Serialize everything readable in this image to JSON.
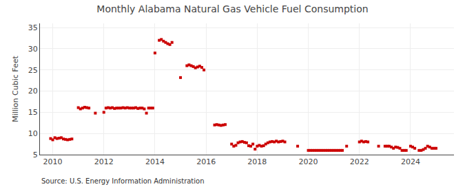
{
  "chart_data": {
    "type": "scatter",
    "title": "Monthly Alabama Natural Gas Vehicle Fuel Consumption",
    "ylabel": "Million Cubic Feet",
    "source": "Source: U.S. Energy Information Administration",
    "color": "#cc0000",
    "marker": "square",
    "grid": true,
    "xlim": [
      2009.5,
      2025.7
    ],
    "ylim": [
      5,
      36
    ],
    "xticks": [
      2010,
      2012,
      2014,
      2016,
      2018,
      2020,
      2022,
      2024
    ],
    "yticks": [
      5,
      10,
      15,
      20,
      25,
      30,
      35
    ],
    "x": [
      2009.917,
      2010.0,
      2010.083,
      2010.167,
      2010.25,
      2010.333,
      2010.417,
      2010.5,
      2010.583,
      2010.667,
      2010.75,
      2011.0,
      2011.083,
      2011.167,
      2011.25,
      2011.333,
      2011.417,
      2011.667,
      2012.0,
      2012.083,
      2012.167,
      2012.25,
      2012.333,
      2012.417,
      2012.5,
      2012.583,
      2012.667,
      2012.75,
      2012.833,
      2012.917,
      2013.0,
      2013.083,
      2013.167,
      2013.25,
      2013.333,
      2013.417,
      2013.5,
      2013.583,
      2013.667,
      2013.75,
      2013.833,
      2013.917,
      2014.0,
      2014.167,
      2014.25,
      2014.333,
      2014.417,
      2014.5,
      2014.583,
      2014.667,
      2015.0,
      2015.25,
      2015.333,
      2015.417,
      2015.5,
      2015.583,
      2015.667,
      2015.75,
      2015.833,
      2015.917,
      2016.333,
      2016.417,
      2016.5,
      2016.583,
      2016.667,
      2016.75,
      2017.0,
      2017.083,
      2017.167,
      2017.25,
      2017.333,
      2017.417,
      2017.5,
      2017.583,
      2017.667,
      2017.75,
      2017.833,
      2017.917,
      2018.0,
      2018.083,
      2018.167,
      2018.25,
      2018.333,
      2018.417,
      2018.5,
      2018.583,
      2018.667,
      2018.75,
      2018.833,
      2018.917,
      2019.0,
      2019.083,
      2019.583,
      2020.0,
      2020.083,
      2020.167,
      2020.25,
      2020.333,
      2020.417,
      2020.5,
      2020.583,
      2020.667,
      2020.75,
      2020.833,
      2020.917,
      2021.0,
      2021.083,
      2021.167,
      2021.25,
      2021.333,
      2021.5,
      2022.0,
      2022.083,
      2022.167,
      2022.25,
      2022.333,
      2022.75,
      2023.0,
      2023.083,
      2023.167,
      2023.25,
      2023.333,
      2023.417,
      2023.5,
      2023.583,
      2023.667,
      2023.75,
      2023.833,
      2024.0,
      2024.083,
      2024.167,
      2024.333,
      2024.417,
      2024.5,
      2024.583,
      2024.667,
      2024.75,
      2024.833,
      2024.917,
      2025.0
    ],
    "values": [
      8.8,
      8.5,
      9.0,
      8.8,
      8.9,
      9.0,
      8.7,
      8.6,
      8.5,
      8.6,
      8.7,
      16.1,
      15.8,
      16.0,
      16.2,
      16.1,
      16.0,
      14.8,
      15.0,
      16.0,
      16.1,
      16.0,
      16.1,
      15.9,
      16.0,
      16.0,
      16.0,
      16.1,
      16.0,
      16.1,
      16.0,
      16.0,
      16.0,
      16.1,
      15.9,
      16.0,
      16.0,
      15.8,
      14.8,
      16.0,
      16.0,
      16.0,
      29.0,
      32.0,
      32.2,
      31.8,
      31.5,
      31.2,
      31.0,
      31.5,
      23.2,
      26.0,
      26.2,
      26.0,
      25.8,
      25.5,
      25.7,
      25.9,
      25.6,
      25.0,
      12.0,
      12.1,
      12.0,
      11.9,
      12.0,
      12.1,
      7.5,
      7.0,
      7.2,
      7.8,
      8.0,
      8.1,
      7.9,
      7.8,
      7.1,
      7.0,
      7.5,
      6.3,
      7.0,
      7.2,
      7.0,
      7.1,
      7.5,
      7.8,
      8.0,
      8.1,
      8.0,
      8.2,
      8.0,
      8.1,
      8.2,
      8.0,
      7.0,
      6.0,
      6.0,
      6.0,
      6.0,
      6.0,
      6.0,
      6.0,
      6.0,
      6.0,
      6.0,
      6.0,
      6.0,
      6.0,
      6.0,
      6.0,
      6.0,
      6.0,
      7.0,
      8.0,
      8.2,
      8.0,
      8.1,
      8.0,
      7.0,
      7.0,
      7.0,
      7.0,
      6.8,
      6.5,
      6.8,
      6.7,
      6.5,
      6.0,
      6.0,
      6.0,
      7.0,
      6.8,
      6.5,
      6.0,
      6.0,
      6.2,
      6.5,
      7.0,
      6.8,
      6.5,
      6.5,
      6.5
    ]
  }
}
